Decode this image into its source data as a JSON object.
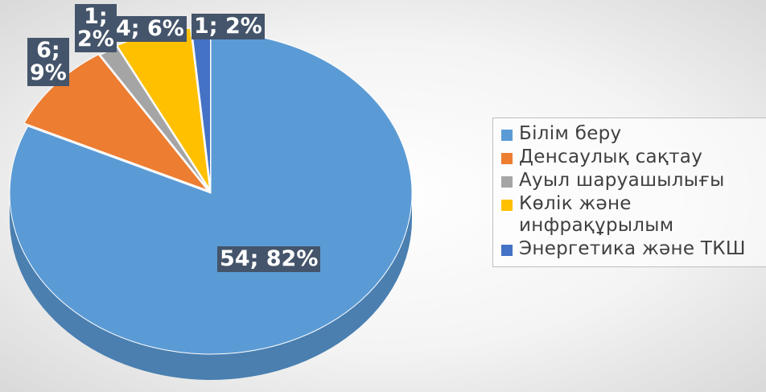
{
  "chart_data": {
    "type": "pie",
    "style": "3d-exploded",
    "categories": [
      "Білім беру",
      "Денсаулық сақтау",
      "Ауыл шаруашылығы",
      "Көлік және инфрақұрылым",
      "Энергетика және ТКШ"
    ],
    "values": [
      54,
      6,
      1,
      4,
      1
    ],
    "percentages": [
      82,
      9,
      2,
      6,
      2
    ],
    "data_labels": [
      "54; 82%",
      "6;\n9%",
      "1;\n2%",
      "4; 6%",
      "1; 2%"
    ],
    "colors": [
      "#5b9bd5",
      "#ed7d31",
      "#a5a5a5",
      "#ffc000",
      "#4472c4"
    ],
    "side_colors": [
      "#4a7fb0",
      "#c0652a",
      "#888888",
      "#cf9c00",
      "#375d9e"
    ],
    "legend_position": "right"
  }
}
